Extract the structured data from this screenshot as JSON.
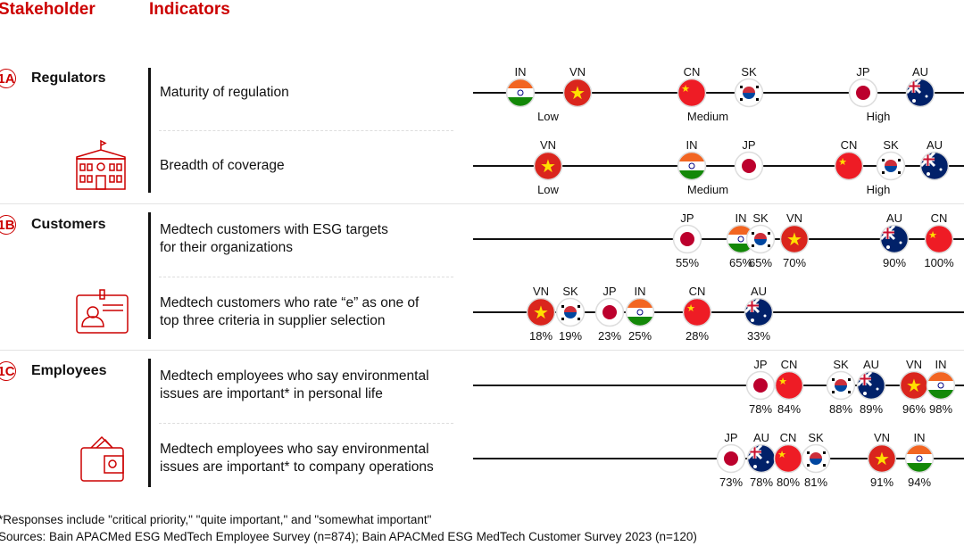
{
  "headers": {
    "stakeholder": "Stakeholder",
    "indicators": "Indicators"
  },
  "stakeholders": [
    {
      "badge": "1A",
      "label": "Regulators",
      "icon": "government-building-icon"
    },
    {
      "badge": "1B",
      "label": "Customers",
      "icon": "id-badge-icon"
    },
    {
      "badge": "1C",
      "label": "Employees",
      "icon": "wallet-icon"
    }
  ],
  "indicators": [
    {
      "label": "Maturity of regulation"
    },
    {
      "label": "Breadth of coverage"
    },
    {
      "label": "Medtech customers with ESG targets for their organizations"
    },
    {
      "label": "Medtech customers who rate “e” as one of top three criteria in supplier selection"
    },
    {
      "label": "Medtech employees who say environmental issues are important* in personal life"
    },
    {
      "label": "Medtech employees who say environmental issues are important* to company operations"
    }
  ],
  "chart_data": {
    "type": "dot-strip",
    "level_labels": [
      "Low",
      "Medium",
      "High"
    ],
    "rows": [
      {
        "indicator": "Maturity of regulation",
        "scale": "categorical",
        "points": [
          {
            "country": "IN",
            "value": "Low"
          },
          {
            "country": "VN",
            "value": "Low"
          },
          {
            "country": "CN",
            "value": "Medium"
          },
          {
            "country": "SK",
            "value": "Medium"
          },
          {
            "country": "JP",
            "value": "High"
          },
          {
            "country": "AU",
            "value": "High"
          }
        ]
      },
      {
        "indicator": "Breadth of coverage",
        "scale": "categorical",
        "points": [
          {
            "country": "VN",
            "value": "Low"
          },
          {
            "country": "IN",
            "value": "Medium"
          },
          {
            "country": "JP",
            "value": "Medium"
          },
          {
            "country": "CN",
            "value": "High"
          },
          {
            "country": "SK",
            "value": "High"
          },
          {
            "country": "AU",
            "value": "High"
          }
        ]
      },
      {
        "indicator": "Medtech customers with ESG targets for their organizations",
        "scale": "percent",
        "points": [
          {
            "country": "JP",
            "value": "55%"
          },
          {
            "country": "IN",
            "value": "65%"
          },
          {
            "country": "SK",
            "value": "65%"
          },
          {
            "country": "VN",
            "value": "70%"
          },
          {
            "country": "AU",
            "value": "90%"
          },
          {
            "country": "CN",
            "value": "100%"
          }
        ]
      },
      {
        "indicator": "Medtech customers who rate e as one of top three criteria",
        "scale": "percent",
        "points": [
          {
            "country": "VN",
            "value": "18%"
          },
          {
            "country": "SK",
            "value": "19%"
          },
          {
            "country": "JP",
            "value": "23%"
          },
          {
            "country": "IN",
            "value": "25%"
          },
          {
            "country": "CN",
            "value": "28%"
          },
          {
            "country": "AU",
            "value": "33%"
          }
        ]
      },
      {
        "indicator": "Employees: important in personal life",
        "scale": "percent",
        "points": [
          {
            "country": "JP",
            "value": "78%"
          },
          {
            "country": "CN",
            "value": "84%"
          },
          {
            "country": "SK",
            "value": "88%"
          },
          {
            "country": "AU",
            "value": "89%"
          },
          {
            "country": "VN",
            "value": "96%"
          },
          {
            "country": "IN",
            "value": "98%"
          }
        ]
      },
      {
        "indicator": "Employees: important to company operations",
        "scale": "percent",
        "points": [
          {
            "country": "JP",
            "value": "73%"
          },
          {
            "country": "AU",
            "value": "78%"
          },
          {
            "country": "CN",
            "value": "80%"
          },
          {
            "country": "SK",
            "value": "81%"
          },
          {
            "country": "VN",
            "value": "91%"
          },
          {
            "country": "IN",
            "value": "94%"
          }
        ]
      }
    ]
  },
  "colors": {
    "accent": "#cc0000"
  },
  "footnotes": {
    "note": "*Responses include \"critical priority,\" \"quite important,\" and \"somewhat important\"",
    "sources": "Sources: Bain APACMed ESG MedTech Employee Survey (n=874); Bain APACMed ESG MedTech Customer Survey 2023 (n=120)"
  }
}
